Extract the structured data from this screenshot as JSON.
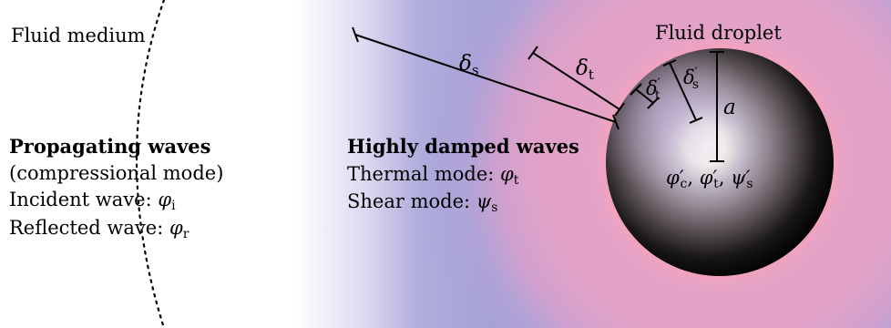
{
  "labels": {
    "fluid_medium": "Fluid medium",
    "fluid_droplet": "Fluid droplet"
  },
  "propagating": {
    "title": "Propagating waves",
    "mode": "(compressional mode)",
    "incident_text": "Incident wave: ",
    "incident_symbol": "φ",
    "incident_sub": "i",
    "reflected_text": "Reflected wave: ",
    "reflected_symbol": "φ",
    "reflected_sub": "r"
  },
  "damped": {
    "title": "Highly damped waves",
    "thermal_text": "Thermal mode: ",
    "thermal_symbol": "φ",
    "thermal_sub": "t",
    "shear_text": "Shear mode: ",
    "shear_symbol": "ψ",
    "shear_sub": "s"
  },
  "lengths": {
    "delta": "δ",
    "delta_s_sub": "s",
    "delta_t_sub": "t",
    "prime": "′",
    "radius": "a"
  },
  "droplet_fields": {
    "phi_c": "φ′",
    "phi_c_sub": "c",
    "phi_t": "φ′",
    "phi_t_sub": "t",
    "psi_s": "ψ′",
    "psi_s_sub": "s",
    "sep": ", "
  },
  "colors": {
    "outer_field": "#a8a4d8",
    "inner_field": "#e4a3c6",
    "droplet_light": "#f5f3ef",
    "droplet_dark": "#050505"
  }
}
